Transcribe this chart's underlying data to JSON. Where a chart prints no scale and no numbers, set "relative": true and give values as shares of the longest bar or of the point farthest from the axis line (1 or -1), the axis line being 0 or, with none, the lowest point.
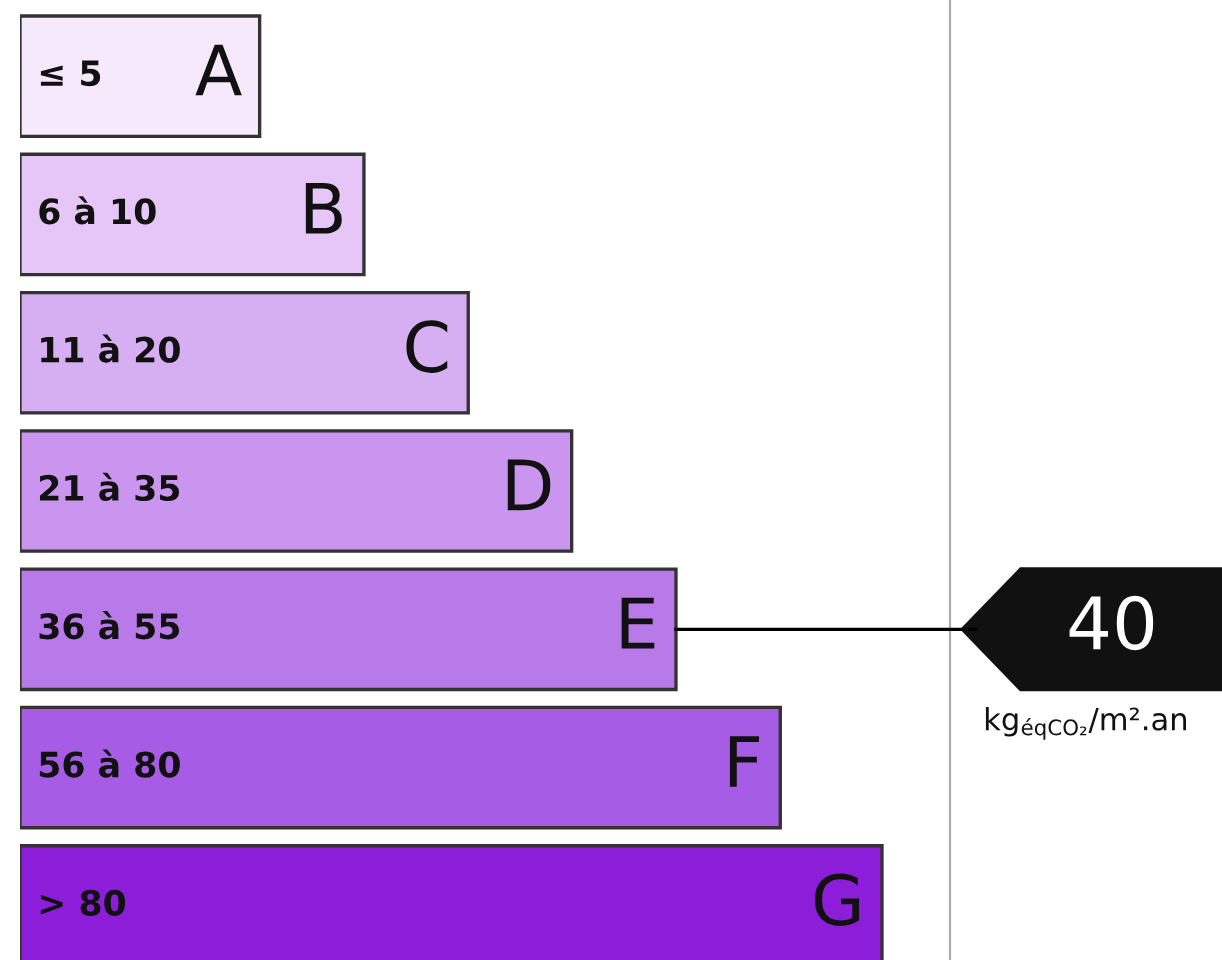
{
  "chart_data": {
    "type": "bar",
    "orientation": "horizontal",
    "relative": true,
    "categories": [
      "A",
      "B",
      "C",
      "D",
      "E",
      "F",
      "G"
    ],
    "values": [
      0.278,
      0.399,
      0.52,
      0.64,
      0.761,
      0.882,
      1
    ],
    "colors": [
      "#f7e9fc",
      "#e5c6f7",
      "#d6aef2",
      "#c995ee",
      "#b97ae9",
      "#a65ce4",
      "#8c1ed9"
    ],
    "annotations": [
      "≤ 5",
      "6 à 10",
      "11 à 20",
      "21 à 35",
      "36 à 55",
      "56 à 80",
      "> 80",
      {
        "text": "40",
        "x": 0.761,
        "y": "E"
      },
      "kg$_{éqCO₂}$/m².an"
    ],
    "grid": false,
    "legend": false,
    "tick_labels": false
  }
}
